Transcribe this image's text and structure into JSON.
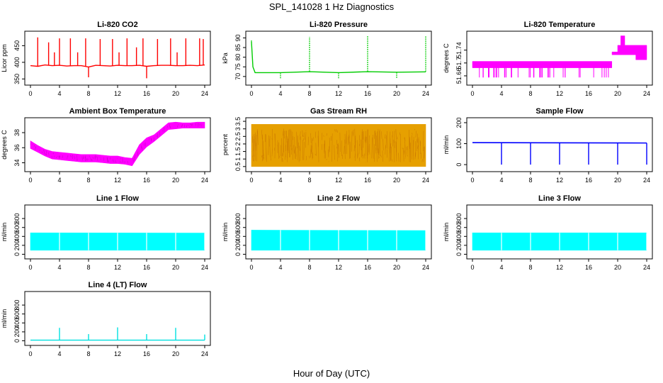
{
  "figure": {
    "title": "SPL_141028  1 Hz Diagnostics",
    "xlabel": "Hour of Day (UTC)"
  },
  "chart_data": [
    {
      "type": "line",
      "title": "Li-820 CO2",
      "xlabel": "",
      "ylabel": "Licor ppm",
      "color": "#ff0000",
      "xlim": [
        0,
        24
      ],
      "xticks": [
        0,
        4,
        8,
        12,
        16,
        20,
        24
      ],
      "ylim": [
        340,
        485
      ],
      "yticks": [
        350,
        400,
        450
      ],
      "series": [
        {
          "x": [
            0,
            1,
            2,
            3,
            4,
            5,
            6,
            7,
            8,
            9,
            10,
            11,
            12,
            13,
            14,
            15,
            16,
            17,
            18,
            19,
            20,
            21,
            22,
            23,
            24
          ],
          "values": [
            390,
            388,
            392,
            390,
            391,
            389,
            390,
            390,
            386,
            391,
            390,
            389,
            391,
            390,
            390,
            391,
            388,
            390,
            391,
            391,
            390,
            390,
            391,
            390,
            392
          ]
        }
      ],
      "spikes": [
        [
          1,
          475
        ],
        [
          2.5,
          460
        ],
        [
          3.3,
          430
        ],
        [
          4,
          472
        ],
        [
          5.5,
          472
        ],
        [
          6.5,
          430
        ],
        [
          7.6,
          472
        ],
        [
          8,
          355
        ],
        [
          9.6,
          470
        ],
        [
          11.3,
          470
        ],
        [
          12.2,
          430
        ],
        [
          13.3,
          472
        ],
        [
          14.6,
          445
        ],
        [
          15.5,
          472
        ],
        [
          16,
          352
        ],
        [
          17.5,
          470
        ],
        [
          19.3,
          472
        ],
        [
          20.2,
          430
        ],
        [
          21.4,
          472
        ],
        [
          23.3,
          472
        ],
        [
          23.8,
          470
        ]
      ]
    },
    {
      "type": "line",
      "title": "Li-820 Pressure",
      "xlabel": "",
      "ylabel": "kPa",
      "color": "#00cc00",
      "xlim": [
        0,
        24
      ],
      "xticks": [
        0,
        4,
        8,
        12,
        16,
        20,
        24
      ],
      "ylim": [
        67,
        92
      ],
      "yticks": [
        70,
        75,
        80,
        85,
        90
      ],
      "series": [
        {
          "x": [
            0,
            0.2,
            0.5,
            4,
            8,
            12,
            16,
            20,
            24
          ],
          "values": [
            88,
            75,
            72,
            72,
            72.5,
            72,
            72.5,
            72.2,
            72.4
          ]
        }
      ],
      "spikes": [
        [
          0,
          89
        ],
        [
          4,
          69
        ],
        [
          8,
          90.5
        ],
        [
          12,
          69
        ],
        [
          16,
          91
        ],
        [
          20,
          69
        ],
        [
          24,
          91
        ]
      ]
    },
    {
      "type": "area",
      "title": "Li-820 Temperature",
      "xlabel": "",
      "ylabel": "degrees C",
      "color": "#ff00ff",
      "xlim": [
        0,
        24
      ],
      "xticks": [
        0,
        4,
        8,
        12,
        16,
        20,
        24
      ],
      "ylim": [
        51.64,
        51.79
      ],
      "yticks": [
        51.66,
        51.7,
        51.74
      ],
      "series": [
        {
          "x": [
            0,
            19.2
          ],
          "values": [
            51.705,
            51.705
          ]
        },
        {
          "x": [
            0,
            19.2
          ],
          "values": [
            51.685,
            51.685
          ]
        },
        {
          "x": [
            19.2,
            20.0,
            20.0,
            24
          ],
          "values": [
            51.73,
            51.73,
            51.755,
            51.755
          ]
        },
        {
          "x": [
            19.2,
            22.5,
            22.5,
            24
          ],
          "values": [
            51.73,
            51.73,
            51.71,
            51.71
          ]
        }
      ]
    },
    {
      "type": "area",
      "title": "Ambient Box Temperature",
      "xlabel": "",
      "ylabel": "degrees C",
      "color": "#ff00ff",
      "xlim": [
        0,
        24
      ],
      "xticks": [
        0,
        4,
        8,
        12,
        16,
        20,
        24
      ],
      "ylim": [
        33.2,
        39.6
      ],
      "yticks": [
        34,
        36,
        38
      ],
      "series": [
        {
          "x": [
            0,
            1,
            2,
            3,
            4,
            5,
            6,
            7,
            8,
            9,
            10,
            11,
            12,
            13,
            14,
            15,
            16,
            17,
            18,
            19,
            20,
            21,
            22,
            23,
            24
          ],
          "values": [
            36.9,
            36.3,
            35.8,
            35.5,
            35.4,
            35.3,
            35.2,
            35.1,
            35.1,
            35.1,
            35.0,
            34.9,
            34.9,
            34.7,
            34.6,
            36.4,
            37.3,
            37.7,
            38.5,
            39.3,
            39.4,
            39.3,
            39.3,
            39.4,
            39.4
          ]
        },
        {
          "x": [
            0,
            1,
            2,
            3,
            4,
            5,
            6,
            7,
            8,
            9,
            10,
            11,
            12,
            13,
            14,
            15,
            16,
            17,
            18,
            19,
            20,
            21,
            22,
            23,
            24
          ],
          "values": [
            35.9,
            35.4,
            34.9,
            34.5,
            34.4,
            34.3,
            34.2,
            34.1,
            34.1,
            34.1,
            34.0,
            33.9,
            33.9,
            33.8,
            33.6,
            35.1,
            36.1,
            36.8,
            37.6,
            38.4,
            38.5,
            38.6,
            38.6,
            38.6,
            38.6
          ]
        }
      ]
    },
    {
      "type": "area",
      "title": "Gas Stream RH",
      "xlabel": "",
      "ylabel": "percent",
      "color": "#e6a000",
      "xlim": [
        0,
        24
      ],
      "xticks": [
        0,
        4,
        8,
        12,
        16,
        20,
        24
      ],
      "ylim": [
        0.35,
        3.55
      ],
      "yticks": [
        0.5,
        1.0,
        1.5,
        2.0,
        2.5,
        3.0,
        3.5
      ],
      "series": [
        {
          "x": [
            0,
            24
          ],
          "values": [
            3.3,
            3.3
          ]
        },
        {
          "x": [
            0,
            24
          ],
          "values": [
            0.5,
            0.5
          ]
        }
      ]
    },
    {
      "type": "line",
      "title": "Sample Flow",
      "xlabel": "",
      "ylabel": "ml/min",
      "color": "#0000ff",
      "xlim": [
        0,
        24
      ],
      "xticks": [
        0,
        4,
        8,
        12,
        16,
        20,
        24
      ],
      "ylim": [
        -20,
        210
      ],
      "yticks": [
        0,
        100,
        200
      ],
      "series": [
        {
          "x": [
            0,
            24
          ],
          "values": [
            105,
            103
          ]
        }
      ],
      "spikes": [
        [
          4,
          0
        ],
        [
          8,
          0
        ],
        [
          12,
          0
        ],
        [
          16,
          0
        ],
        [
          20,
          0
        ],
        [
          24,
          0
        ]
      ]
    },
    {
      "type": "area",
      "title": "Line 1 Flow",
      "xlabel": "",
      "ylabel": "ml/min",
      "color": "#00ffff",
      "xlim": [
        0,
        24
      ],
      "xticks": [
        0,
        4,
        8,
        12,
        16,
        20,
        24
      ],
      "ylim": [
        -40,
        1040
      ],
      "yticks": [
        0,
        200,
        400,
        600,
        800
      ],
      "series": [
        {
          "x": [
            0,
            24
          ],
          "values": [
            480,
            475
          ]
        },
        {
          "x": [
            0,
            24
          ],
          "values": [
            90,
            90
          ]
        }
      ],
      "gaps": [
        4,
        8,
        12,
        16,
        20,
        24
      ]
    },
    {
      "type": "area",
      "title": "Line 2 Flow",
      "xlabel": "",
      "ylabel": "ml/min",
      "color": "#00ffff",
      "xlim": [
        0,
        24
      ],
      "xticks": [
        0,
        4,
        8,
        12,
        16,
        20,
        24
      ],
      "ylim": [
        -40,
        1040
      ],
      "yticks": [
        0,
        200,
        400,
        600,
        800
      ],
      "series": [
        {
          "x": [
            0,
            24
          ],
          "values": [
            540,
            530
          ]
        },
        {
          "x": [
            0,
            24
          ],
          "values": [
            90,
            90
          ]
        }
      ],
      "gaps": [
        4,
        8,
        12,
        16,
        20,
        24
      ]
    },
    {
      "type": "area",
      "title": "Line 3 Flow",
      "xlabel": "",
      "ylabel": "ml/min",
      "color": "#00ffff",
      "xlim": [
        0,
        24
      ],
      "xticks": [
        0,
        4,
        8,
        12,
        16,
        20,
        24
      ],
      "ylim": [
        -40,
        1040
      ],
      "yticks": [
        0,
        200,
        400,
        600,
        800
      ],
      "series": [
        {
          "x": [
            0,
            24
          ],
          "values": [
            480,
            480
          ]
        },
        {
          "x": [
            0,
            24
          ],
          "values": [
            90,
            90
          ]
        }
      ],
      "gaps": [
        4,
        8,
        12,
        16,
        20,
        24
      ]
    },
    {
      "type": "line",
      "title": "Line 4 (LT) Flow",
      "xlabel": "",
      "ylabel": "ml/min",
      "color": "#00e0e0",
      "xlim": [
        0,
        24
      ],
      "xticks": [
        0,
        4,
        8,
        12,
        16,
        20,
        24
      ],
      "ylim": [
        -40,
        1040
      ],
      "yticks": [
        0,
        200,
        400,
        600,
        800
      ],
      "series": [
        {
          "x": [
            0,
            24
          ],
          "values": [
            15,
            15
          ]
        }
      ],
      "spikes": [
        [
          4,
          290
        ],
        [
          8,
          150
        ],
        [
          12,
          300
        ],
        [
          16,
          150
        ],
        [
          20,
          290
        ],
        [
          24,
          140
        ]
      ]
    }
  ]
}
